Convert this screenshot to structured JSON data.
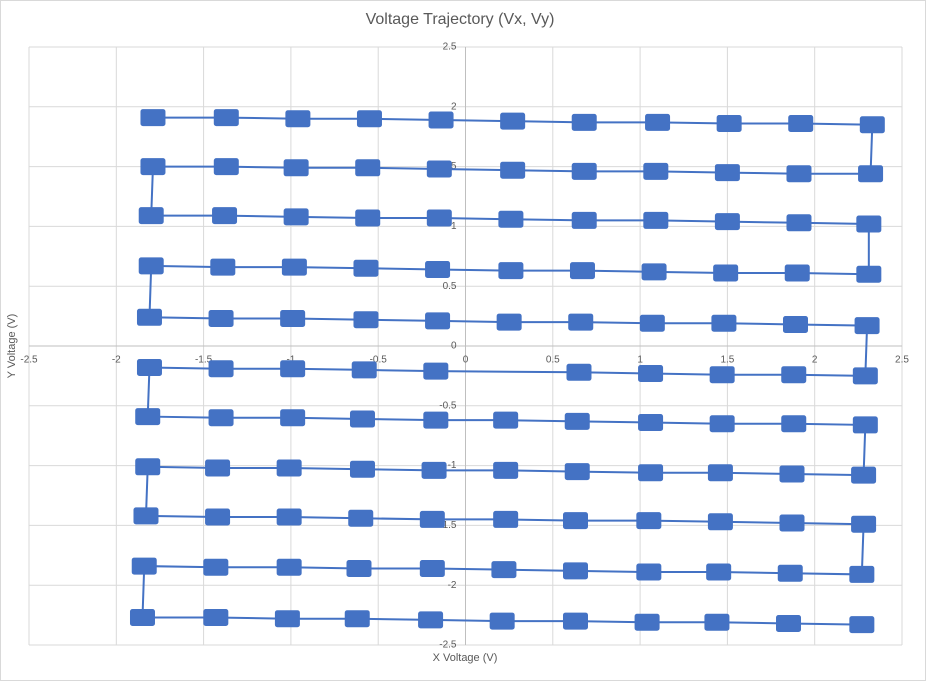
{
  "chart_data": {
    "type": "scatter",
    "title": "Voltage Trajectory (Vx, Vy)",
    "xlabel": "X Voltage (V)",
    "ylabel": "Y Voltage (V)",
    "color": "#4472c4",
    "grid": true,
    "xlim": [
      -2.5,
      2.5
    ],
    "ylim": [
      -2.5,
      2.5
    ],
    "xticks": [
      -2.5,
      -2,
      -1.5,
      -1,
      -0.5,
      0,
      0.5,
      1,
      1.5,
      2,
      2.5
    ],
    "yticks": [
      -2.5,
      -2,
      -1.5,
      -1,
      -0.5,
      0,
      0.5,
      1,
      1.5,
      2,
      2.5
    ],
    "x": [
      -1.79,
      -1.37,
      -0.96,
      -0.55,
      -0.14,
      0.27,
      0.68,
      1.1,
      1.51,
      1.92,
      2.33,
      2.32,
      1.91,
      1.5,
      1.09,
      0.68,
      0.27,
      -0.15,
      -0.56,
      -0.97,
      -1.37,
      -1.79,
      -1.8,
      -1.38,
      -0.97,
      -0.56,
      -0.15,
      0.26,
      0.68,
      1.09,
      1.5,
      1.91,
      2.31,
      2.31,
      1.9,
      1.49,
      1.08,
      0.67,
      0.26,
      -0.16,
      -0.57,
      -0.98,
      -1.39,
      -1.8,
      -1.81,
      -1.4,
      -0.99,
      -0.57,
      -0.16,
      0.25,
      0.66,
      1.07,
      1.48,
      1.89,
      2.3,
      2.29,
      1.88,
      1.47,
      1.06,
      0.65,
      -0.17,
      -0.58,
      -0.99,
      -1.4,
      -1.81,
      -1.82,
      -1.4,
      -0.99,
      -0.59,
      -0.17,
      0.23,
      0.64,
      1.06,
      1.47,
      1.88,
      2.29,
      2.28,
      1.87,
      1.46,
      1.06,
      0.64,
      0.23,
      -0.18,
      -0.59,
      -1.01,
      -1.42,
      -1.82,
      -1.83,
      -1.42,
      -1.01,
      -0.6,
      -0.19,
      0.23,
      0.63,
      1.05,
      1.46,
      1.87,
      2.28,
      2.27,
      1.86,
      1.45,
      1.05,
      0.63,
      0.22,
      -0.19,
      -0.61,
      -1.01,
      -1.43,
      -1.84,
      -1.85,
      -1.43,
      -1.02,
      -0.62,
      -0.2,
      0.21,
      0.63,
      1.04,
      1.44,
      1.85,
      2.27
    ],
    "values": [
      1.91,
      1.91,
      1.9,
      1.9,
      1.89,
      1.88,
      1.87,
      1.87,
      1.86,
      1.86,
      1.85,
      1.44,
      1.44,
      1.45,
      1.46,
      1.46,
      1.47,
      1.48,
      1.49,
      1.49,
      1.5,
      1.5,
      1.09,
      1.09,
      1.08,
      1.07,
      1.07,
      1.06,
      1.05,
      1.05,
      1.04,
      1.03,
      1.02,
      0.6,
      0.61,
      0.61,
      0.62,
      0.63,
      0.63,
      0.64,
      0.65,
      0.66,
      0.66,
      0.67,
      0.24,
      0.23,
      0.23,
      0.22,
      0.21,
      0.2,
      0.2,
      0.19,
      0.19,
      0.18,
      0.17,
      -0.25,
      -0.24,
      -0.24,
      -0.23,
      -0.22,
      -0.21,
      -0.2,
      -0.19,
      -0.19,
      -0.18,
      -0.59,
      -0.6,
      -0.6,
      -0.61,
      -0.62,
      -0.62,
      -0.63,
      -0.64,
      -0.65,
      -0.65,
      -0.66,
      -1.08,
      -1.07,
      -1.06,
      -1.06,
      -1.05,
      -1.04,
      -1.04,
      -1.03,
      -1.02,
      -1.02,
      -1.01,
      -1.42,
      -1.43,
      -1.43,
      -1.44,
      -1.45,
      -1.45,
      -1.46,
      -1.46,
      -1.47,
      -1.48,
      -1.49,
      -1.91,
      -1.9,
      -1.89,
      -1.89,
      -1.88,
      -1.87,
      -1.86,
      -1.86,
      -1.85,
      -1.85,
      -1.84,
      -2.27,
      -2.27,
      -2.28,
      -2.28,
      -2.29,
      -2.3,
      -2.3,
      -2.31,
      -2.31,
      -2.32,
      -2.33
    ]
  }
}
